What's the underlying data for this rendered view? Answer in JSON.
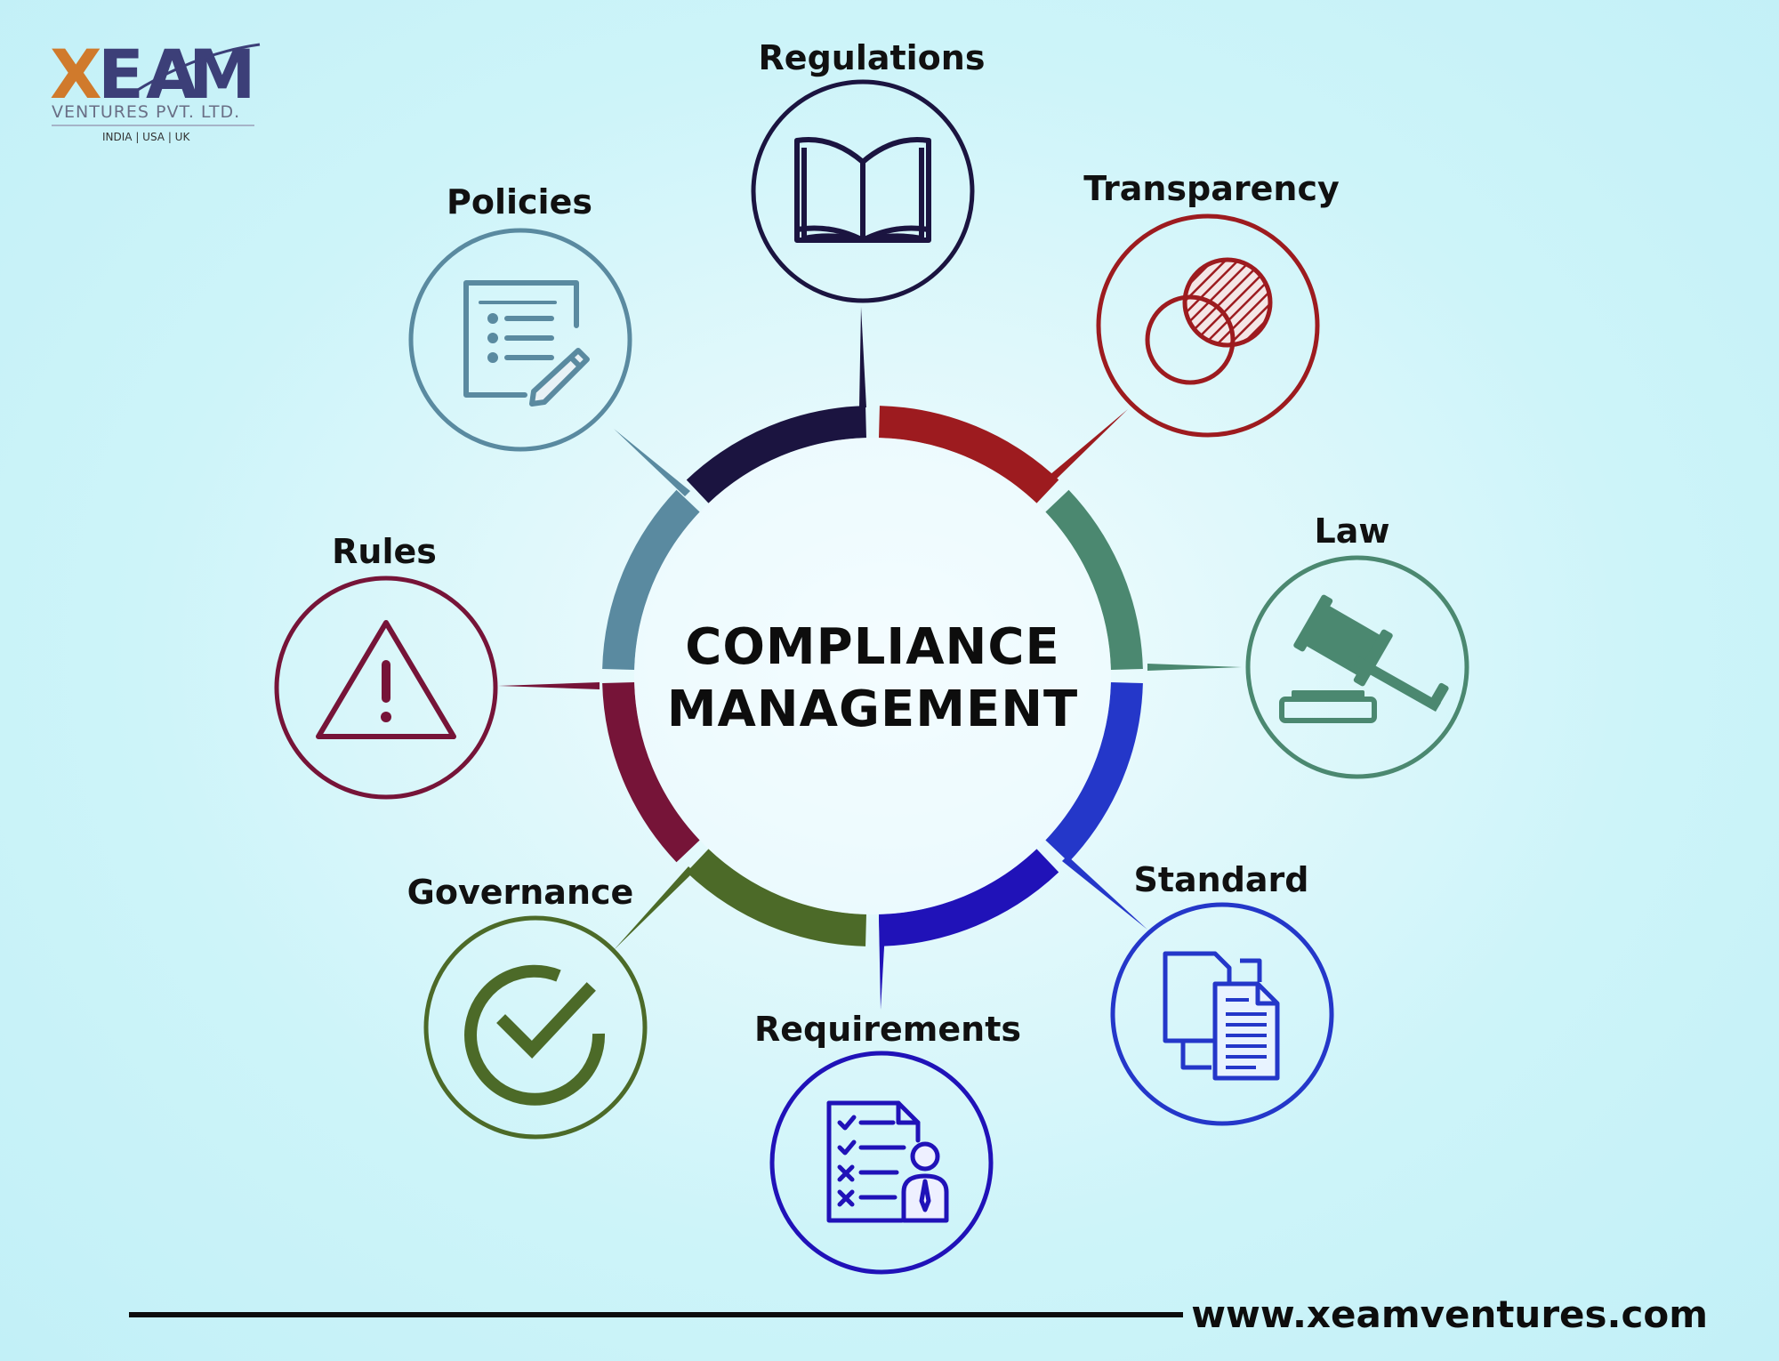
{
  "logo": {
    "letters": [
      "X",
      "E",
      "A",
      "M"
    ],
    "subtitle": "VENTURES PVT. LTD.",
    "countries": "INDIA | USA | UK",
    "colors": {
      "x": "#d07a2c",
      "rest": "#3c3f78"
    }
  },
  "diagram": {
    "center_line1": "COMPLIANCE",
    "center_line2": "MANAGEMENT",
    "nodes": [
      {
        "id": "regulations",
        "label": "Regulations",
        "icon": "open-book-icon",
        "color": "#1b1440"
      },
      {
        "id": "transparency",
        "label": "Transparency",
        "icon": "overlapping-circles-icon",
        "color": "#9d1b1f"
      },
      {
        "id": "law",
        "label": "Law",
        "icon": "gavel-icon",
        "color": "#4b8870"
      },
      {
        "id": "standard",
        "label": "Standard",
        "icon": "documents-icon",
        "color": "#2437c9"
      },
      {
        "id": "requirements",
        "label": "Requirements",
        "icon": "checklist-person-icon",
        "color": "#2012b8"
      },
      {
        "id": "governance",
        "label": "Governance",
        "icon": "check-circle-icon",
        "color": "#4c6a28"
      },
      {
        "id": "rules",
        "label": "Rules",
        "icon": "warning-triangle-icon",
        "color": "#761438"
      },
      {
        "id": "policies",
        "label": "Policies",
        "icon": "document-pen-icon",
        "color": "#5a8aa0"
      }
    ]
  },
  "footer": {
    "url": "www.xeamventures.com"
  }
}
